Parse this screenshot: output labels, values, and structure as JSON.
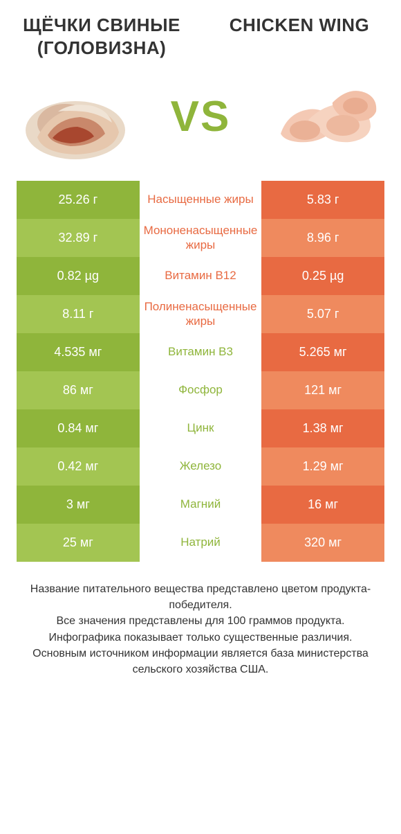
{
  "colors": {
    "green1": "#8fb53b",
    "green2": "#a3c552",
    "orange1": "#e86a42",
    "orange2": "#ef8a5e",
    "text": "#333333",
    "vs": "#8fb53b",
    "title_left": "#333333",
    "title_right": "#333333"
  },
  "titles": {
    "left": "ЩЁЧКИ СВИНЫЕ (ГОЛОВИЗНА)",
    "right": "CHICKEN WING"
  },
  "vs": "VS",
  "rows": [
    {
      "left": "25.26 г",
      "mid": "Насыщенные жиры",
      "right": "5.83 г",
      "winner": "left"
    },
    {
      "left": "32.89 г",
      "mid": "Мононенасыщенные жиры",
      "right": "8.96 г",
      "winner": "left"
    },
    {
      "left": "0.82 µg",
      "mid": "Витамин B12",
      "right": "0.25 µg",
      "winner": "left"
    },
    {
      "left": "8.11 г",
      "mid": "Полиненасыщенные жиры",
      "right": "5.07 г",
      "winner": "left"
    },
    {
      "left": "4.535 мг",
      "mid": "Витамин B3",
      "right": "5.265 мг",
      "winner": "right"
    },
    {
      "left": "86 мг",
      "mid": "Фосфор",
      "right": "121 мг",
      "winner": "right"
    },
    {
      "left": "0.84 мг",
      "mid": "Цинк",
      "right": "1.38 мг",
      "winner": "right"
    },
    {
      "left": "0.42 мг",
      "mid": "Железо",
      "right": "1.29 мг",
      "winner": "right"
    },
    {
      "left": "3 мг",
      "mid": "Магний",
      "right": "16 мг",
      "winner": "right"
    },
    {
      "left": "25 мг",
      "mid": "Натрий",
      "right": "320 мг",
      "winner": "right"
    }
  ],
  "footnote_lines": [
    "Название питательного вещества представлено цветом продукта-победителя.",
    "Все значения представлены для 100 граммов продукта.",
    "Инфографика показывает только существенные различия.",
    "Основным источником информации является база министерства сельского хозяйства США."
  ]
}
